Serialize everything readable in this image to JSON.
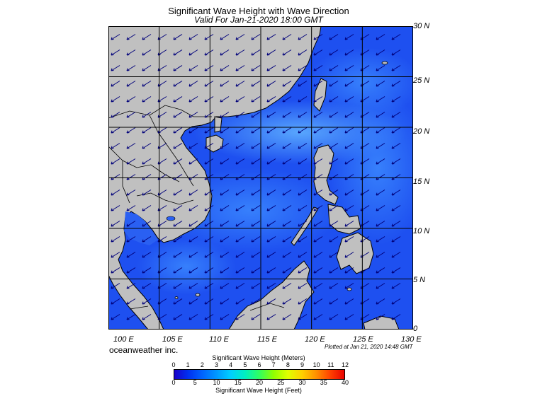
{
  "title": "Significant Wave Height with Wave Direction",
  "subtitle": "Valid For Jan-21-2020 18:00 GMT",
  "credit": "oceanweather inc.",
  "plotted": "Plotted at Jan 21, 2020 14:48 GMT",
  "colors": {
    "land": "#c0c0c0",
    "sea_dark": "#1438e8",
    "sea_mid": "#2a6af5",
    "sea_light": "#46a0ff",
    "grid": "#000000",
    "arrow": "#000080"
  },
  "map": {
    "lon_range": [
      100,
      130
    ],
    "lat_range": [
      0,
      30
    ],
    "lat_labels": [
      "30 N",
      "25 N",
      "20 N",
      "15 N",
      "10 N",
      "5 N",
      "0"
    ],
    "lon_labels": [
      "100 E",
      "105 E",
      "110 E",
      "115 E",
      "120 E",
      "125 E",
      "130 E"
    ],
    "arrow_direction": "from northeast toward southwest"
  },
  "colorbar": {
    "title_meters": "Significant Wave Height (Meters)",
    "title_feet": "Significant Wave Height (Feet)",
    "meter_ticks": [
      "0",
      "1",
      "2",
      "3",
      "4",
      "5",
      "6",
      "7",
      "8",
      "9",
      "10",
      "11",
      "12"
    ],
    "feet_ticks": [
      "0",
      "5",
      "10",
      "15",
      "20",
      "25",
      "30",
      "35",
      "40"
    ],
    "colors": [
      "#1a00c8",
      "#0030f0",
      "#0064ff",
      "#0098ff",
      "#00d0ff",
      "#00f0c0",
      "#30ff60",
      "#90ff00",
      "#e0ff00",
      "#ffd000",
      "#ff9000",
      "#ff4000",
      "#e80000"
    ]
  }
}
